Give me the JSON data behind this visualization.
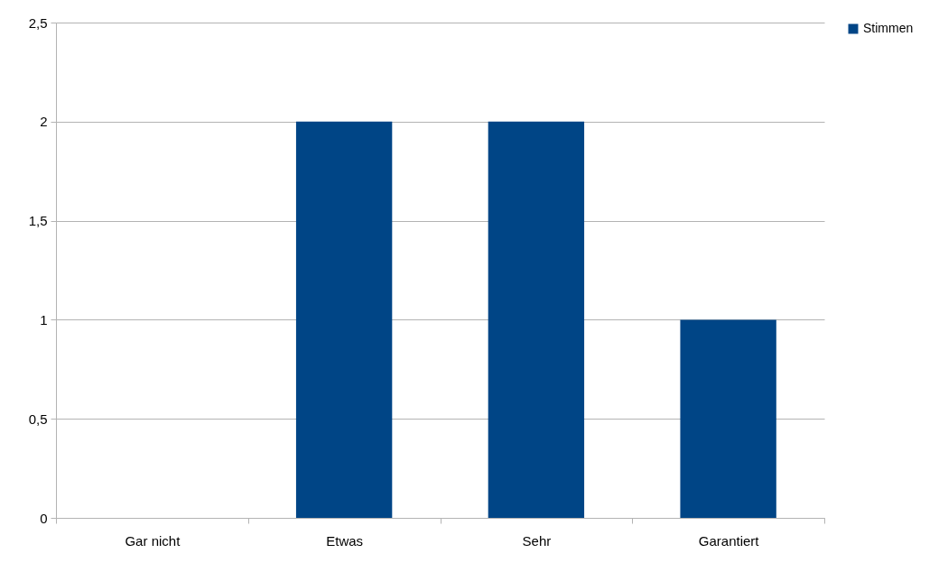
{
  "chart_data": {
    "type": "bar",
    "categories": [
      "Gar nicht",
      "Etwas",
      "Sehr",
      "Garantiert"
    ],
    "series": [
      {
        "name": "Stimmen",
        "color": "#004586",
        "values": [
          0,
          2,
          2,
          1
        ]
      }
    ],
    "ylim": [
      0,
      2.5
    ],
    "yticks": [
      0,
      {
        "value": 0.5,
        "label": "0,5"
      },
      1,
      {
        "value": 1.5,
        "label": "1,5"
      },
      2,
      {
        "value": 2.5,
        "label": "2,5"
      }
    ],
    "grid": "y",
    "legend": "right"
  }
}
